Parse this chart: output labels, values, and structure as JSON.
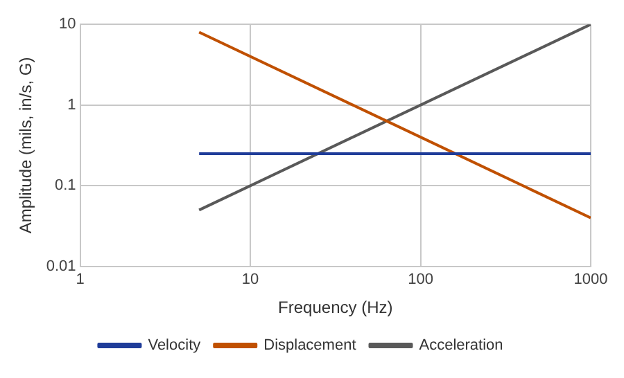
{
  "chart_data": {
    "type": "line",
    "xlabel": "Frequency (Hz)",
    "ylabel": "Amplitude (mils, in/s, G)",
    "log": "xy",
    "xlim": [
      1,
      1000
    ],
    "xticks": [
      1,
      10,
      100,
      1000
    ],
    "ylim": [
      0.01,
      10
    ],
    "yticks": [
      0.01,
      0.1,
      1,
      10
    ],
    "grid": true,
    "legend": "bottom",
    "marker": "none",
    "x": [
      5,
      1000
    ],
    "series": [
      {
        "name": "Velocity",
        "color": "#1f3c99",
        "values": [
          0.25,
          0.25
        ]
      },
      {
        "name": "Displacement",
        "color": "#c05000",
        "values": [
          8,
          0.04
        ]
      },
      {
        "name": "Acceleration",
        "color": "#595959",
        "values": [
          0.05,
          10
        ]
      }
    ]
  }
}
